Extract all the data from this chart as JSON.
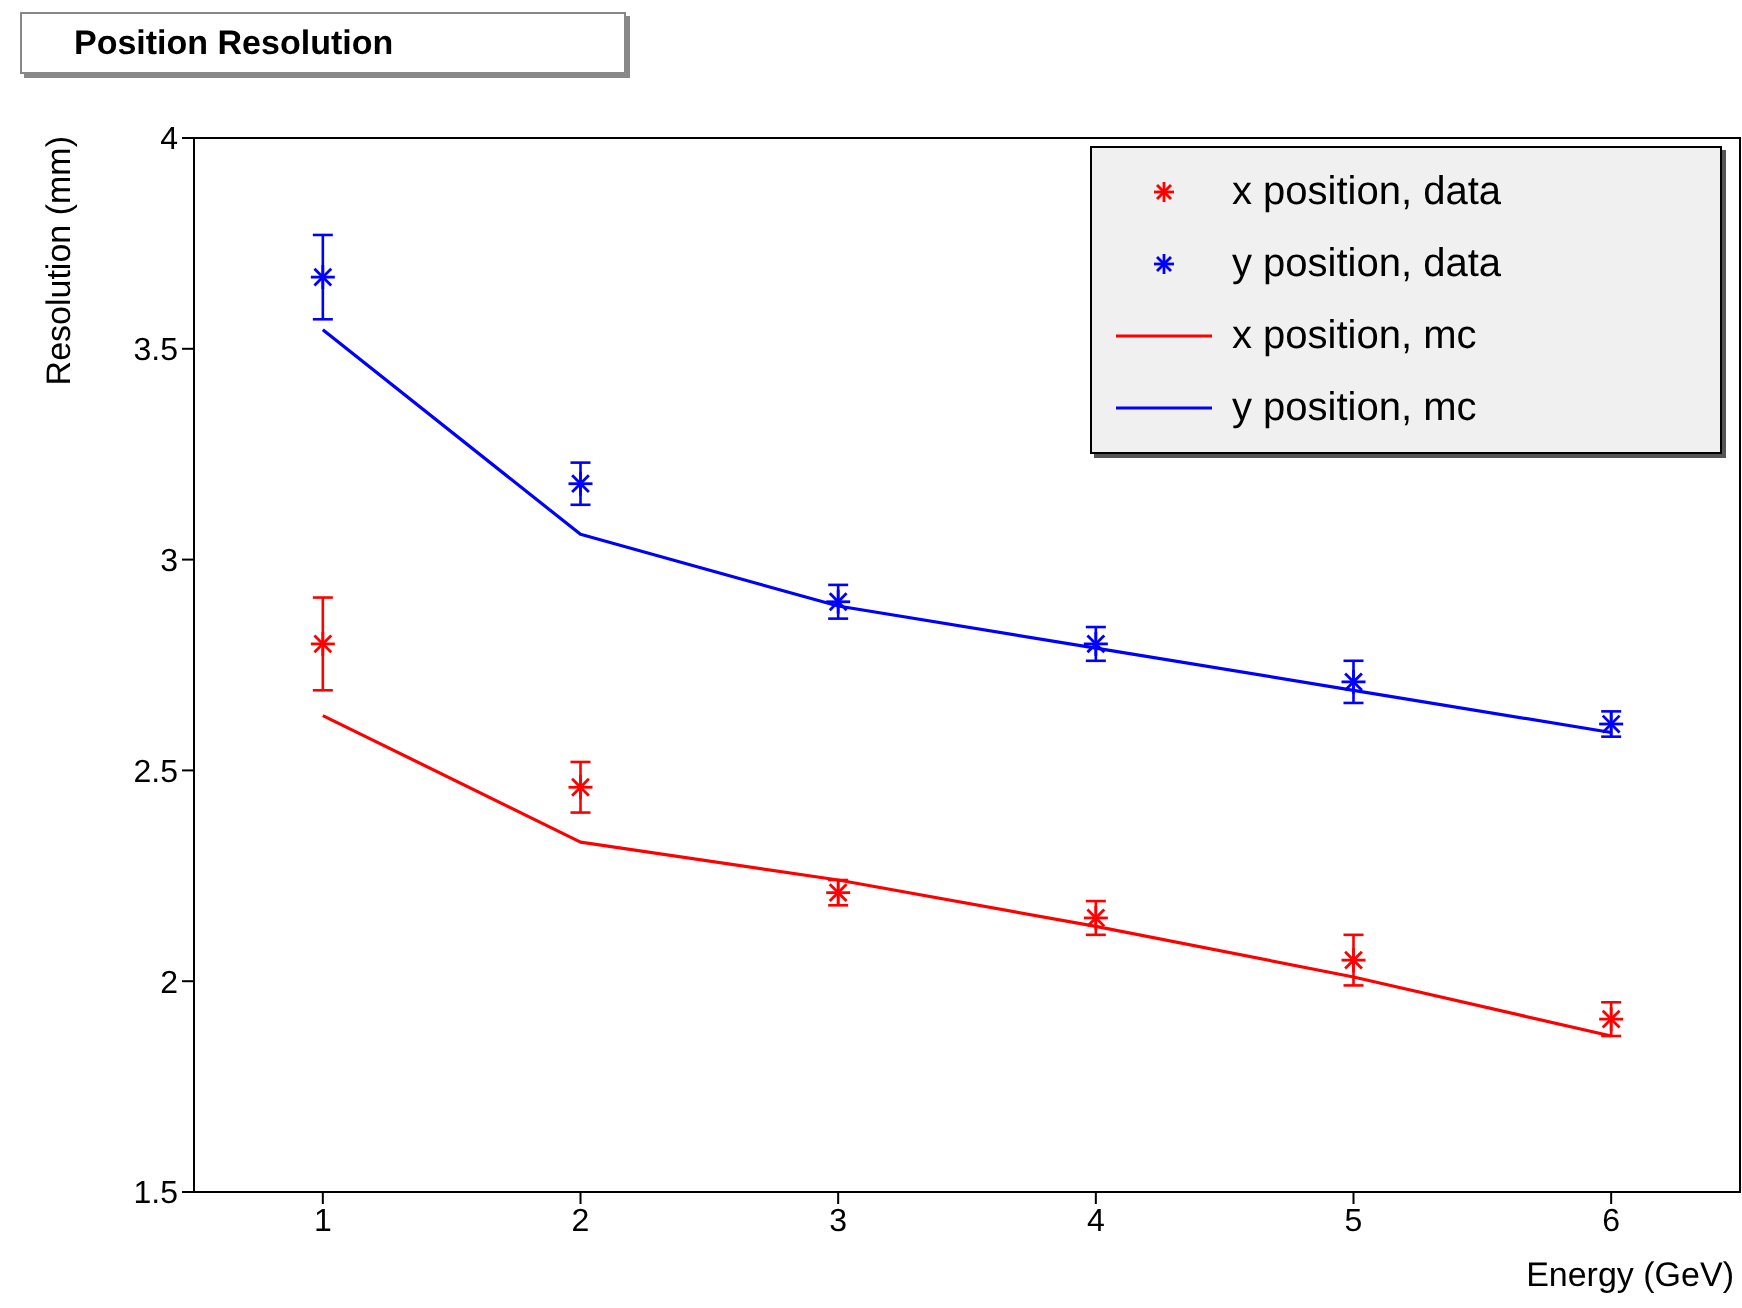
{
  "chart_data": {
    "type": "scatter",
    "title": "Position Resolution",
    "xlabel": "Energy (GeV)",
    "ylabel": "Resolution (mm)",
    "x": [
      1,
      2,
      3,
      4,
      5,
      6
    ],
    "series": [
      {
        "name": "x position, data",
        "color": "#ff0000",
        "marker": "cross",
        "values": [
          2.8,
          2.46,
          2.21,
          2.15,
          2.05,
          1.91
        ],
        "errors": [
          0.11,
          0.06,
          0.03,
          0.04,
          0.06,
          0.04
        ]
      },
      {
        "name": "y position, data",
        "color": "#0000ff",
        "marker": "cross",
        "values": [
          3.67,
          3.18,
          2.9,
          2.8,
          2.71,
          2.61
        ],
        "errors": [
          0.1,
          0.05,
          0.04,
          0.04,
          0.05,
          0.03
        ]
      },
      {
        "name": "x position, mc",
        "type": "line",
        "color": "#ff0000",
        "marker": "none",
        "values": [
          2.63,
          2.33,
          2.24,
          2.13,
          2.01,
          1.87
        ]
      },
      {
        "name": "y position, mc",
        "type": "line",
        "color": "#0000ff",
        "marker": "none",
        "values": [
          3.545,
          3.06,
          2.89,
          2.79,
          2.69,
          2.59
        ]
      }
    ],
    "xlim": [
      0.5,
      6.5
    ],
    "xticks": [
      1,
      2,
      3,
      4,
      5,
      6
    ],
    "ylim": [
      1.5,
      4
    ],
    "yticks": [
      1.5,
      2,
      2.5,
      3,
      3.5,
      4
    ],
    "grid": false,
    "legend": "top right"
  }
}
